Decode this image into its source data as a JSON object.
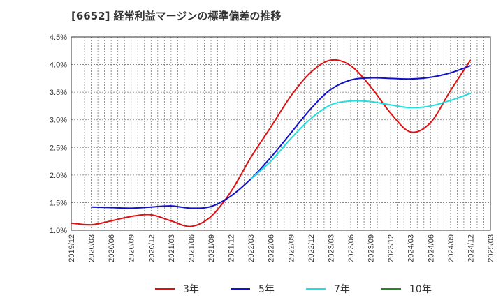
{
  "chart_data": {
    "type": "line",
    "title": "[6652]  経常利益マージンの標準偏差の推移",
    "xlabel": "",
    "ylabel": "",
    "ylim": [
      1.0,
      4.5
    ],
    "y_ticks": [
      "1.0%",
      "1.5%",
      "2.0%",
      "2.5%",
      "3.0%",
      "3.5%",
      "4.0%",
      "4.5%"
    ],
    "x_ticks": [
      "2019/12",
      "2020/03",
      "2020/06",
      "2020/09",
      "2020/12",
      "2021/03",
      "2021/06",
      "2021/09",
      "2021/12",
      "2022/03",
      "2022/06",
      "2022/09",
      "2022/12",
      "2023/03",
      "2023/06",
      "2023/09",
      "2023/12",
      "2024/03",
      "2024/06",
      "2024/09",
      "2024/12",
      "2025/03"
    ],
    "grid": true,
    "legend_position": "bottom",
    "series": [
      {
        "name": "3年",
        "color": "#dd1111",
        "x": [
          "2019/12",
          "2020/03",
          "2020/06",
          "2020/09",
          "2020/12",
          "2021/03",
          "2021/06",
          "2021/09",
          "2021/12",
          "2022/03",
          "2022/06",
          "2022/09",
          "2022/12",
          "2023/03",
          "2023/06",
          "2023/09",
          "2023/12",
          "2024/03",
          "2024/06",
          "2024/09",
          "2024/12"
        ],
        "values": [
          1.13,
          1.1,
          1.17,
          1.25,
          1.28,
          1.17,
          1.07,
          1.25,
          1.7,
          2.32,
          2.87,
          3.43,
          3.86,
          4.08,
          3.98,
          3.6,
          3.12,
          2.78,
          2.95,
          3.53,
          4.08
        ]
      },
      {
        "name": "5年",
        "color": "#1111cc",
        "x": [
          "2020/03",
          "2020/06",
          "2020/09",
          "2020/12",
          "2021/03",
          "2021/06",
          "2021/09",
          "2021/12",
          "2022/03",
          "2022/06",
          "2022/09",
          "2022/12",
          "2023/03",
          "2023/06",
          "2023/09",
          "2023/12",
          "2024/03",
          "2024/06",
          "2024/09",
          "2024/12"
        ],
        "values": [
          1.42,
          1.41,
          1.4,
          1.42,
          1.44,
          1.4,
          1.43,
          1.62,
          1.93,
          2.32,
          2.76,
          3.2,
          3.55,
          3.72,
          3.76,
          3.75,
          3.74,
          3.77,
          3.85,
          3.98
        ]
      },
      {
        "name": "7年",
        "color": "#22dddd",
        "x": [
          "2022/03",
          "2022/06",
          "2022/09",
          "2022/12",
          "2023/03",
          "2023/06",
          "2023/09",
          "2023/12",
          "2024/03",
          "2024/06",
          "2024/09",
          "2024/12"
        ],
        "values": [
          1.93,
          2.25,
          2.66,
          3.02,
          3.27,
          3.34,
          3.33,
          3.27,
          3.22,
          3.25,
          3.35,
          3.48
        ]
      },
      {
        "name": "10年",
        "color": "#228822",
        "x": [],
        "values": []
      }
    ]
  }
}
